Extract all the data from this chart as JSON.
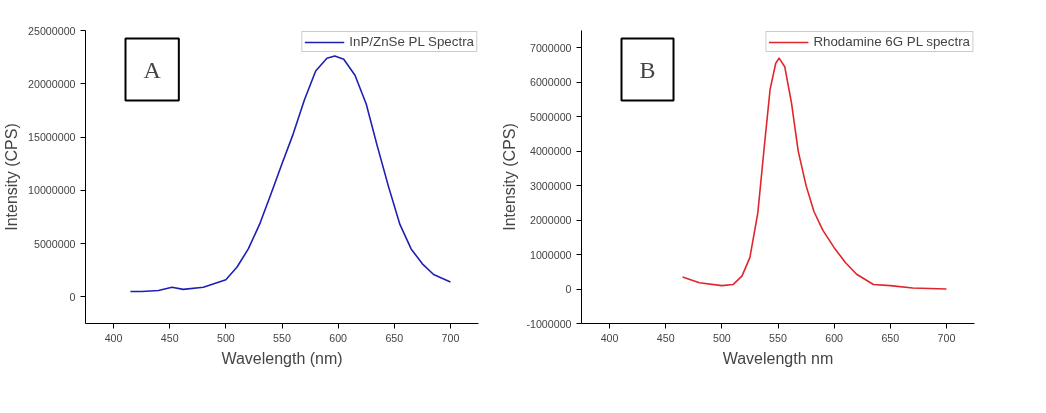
{
  "chart_data": [
    {
      "type": "line",
      "xlabel": "Wavelength (nm)",
      "ylabel": "Intensity (CPS)",
      "annotations": [
        "A"
      ],
      "xlim": [
        375,
        725
      ],
      "xticks": [
        400,
        450,
        500,
        550,
        600,
        650,
        700
      ],
      "ylim": [
        -2500000,
        25000000
      ],
      "yticks": [
        0,
        5000000,
        10000000,
        15000000,
        20000000,
        25000000
      ],
      "grid": false,
      "legend": "top right",
      "series": [
        {
          "name": "InP/ZnSe PL Spectra",
          "color": "#1f1fb4",
          "x": [
            415,
            425,
            440,
            452,
            462,
            480,
            500,
            510,
            520,
            530,
            540,
            550,
            560,
            570,
            580,
            590,
            597,
            605,
            615,
            625,
            635,
            645,
            655,
            665,
            675,
            685,
            700
          ],
          "values": [
            500000,
            500000,
            600000,
            900000,
            700000,
            900000,
            1600000,
            2800000,
            4500000,
            6800000,
            9600000,
            12500000,
            15300000,
            18500000,
            21200000,
            22400000,
            22600000,
            22300000,
            20800000,
            18100000,
            14100000,
            10300000,
            6800000,
            4500000,
            3100000,
            2100000,
            1400000
          ]
        }
      ]
    },
    {
      "type": "line",
      "xlabel": "Wavelength nm",
      "ylabel": "Intensity (CPS)",
      "annotations": [
        "B"
      ],
      "xlim": [
        375,
        725
      ],
      "xticks": [
        400,
        450,
        500,
        550,
        600,
        650,
        700
      ],
      "ylim": [
        -1000000,
        7500000
      ],
      "yticks": [
        -1000000,
        0,
        1000000,
        2000000,
        3000000,
        4000000,
        5000000,
        6000000,
        7000000
      ],
      "grid": false,
      "legend": "top right",
      "series": [
        {
          "name": "Rhodamine 6G PL spectra",
          "color": "#e0262c",
          "x": [
            465,
            480,
            500,
            510,
            518,
            525,
            532,
            538,
            543,
            548,
            551,
            556,
            562,
            568,
            575,
            582,
            590,
            600,
            610,
            620,
            635,
            650,
            670,
            700
          ],
          "values": [
            350000,
            180000,
            100000,
            130000,
            380000,
            920000,
            2200000,
            4200000,
            5800000,
            6550000,
            6700000,
            6450000,
            5400000,
            4000000,
            3000000,
            2250000,
            1700000,
            1200000,
            770000,
            430000,
            130000,
            100000,
            30000,
            0
          ]
        }
      ]
    }
  ]
}
